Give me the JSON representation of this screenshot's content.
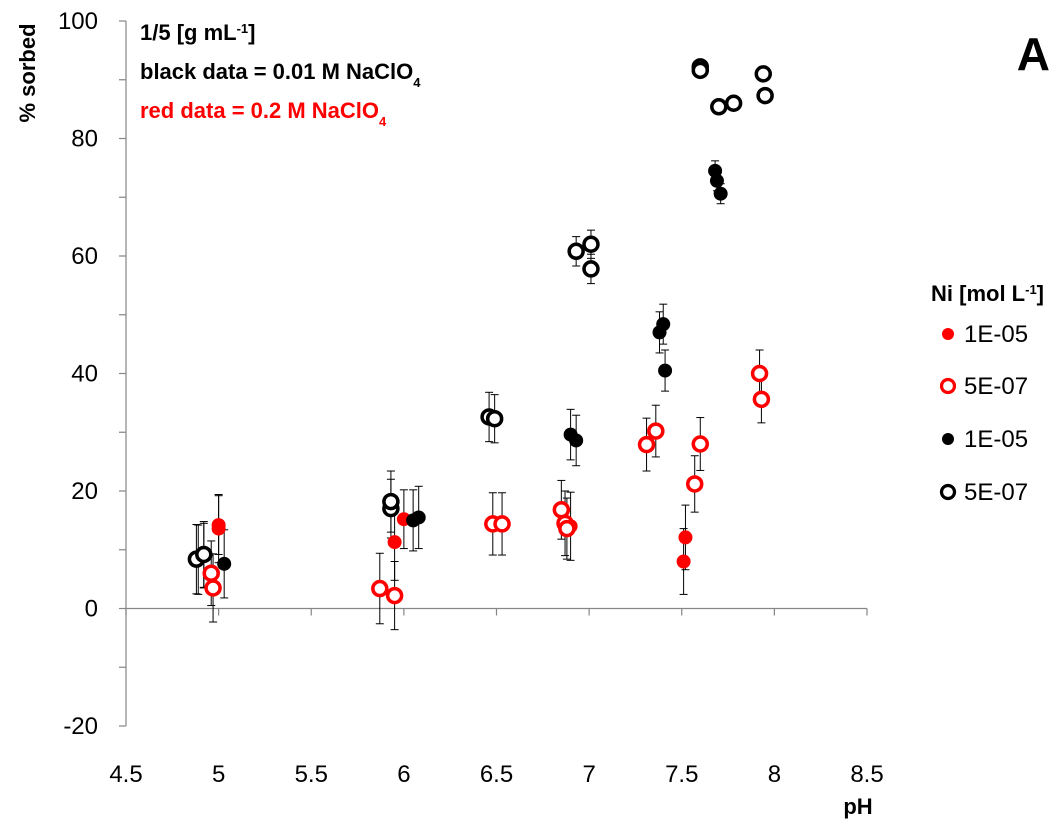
{
  "chart_data": {
    "type": "scatter",
    "title": "",
    "panel_label": "A",
    "xlabel": "pH",
    "ylabel": "% sorbed",
    "xlim": [
      4.5,
      8.5
    ],
    "ylim": [
      -20,
      100
    ],
    "x_ticks": [
      "4.5",
      "5",
      "5.5",
      "6",
      "6.5",
      "7",
      "7.5",
      "8",
      "8.5"
    ],
    "y_ticks": [
      "-20",
      "0",
      "20",
      "40",
      "60",
      "80",
      "100"
    ],
    "x_tick_values": [
      4.5,
      5,
      5.5,
      6,
      6.5,
      7,
      7.5,
      8,
      8.5
    ],
    "y_tick_values": [
      -20,
      0,
      20,
      40,
      60,
      80,
      100
    ],
    "grid": false,
    "legend_position": "right",
    "annotations": [
      {
        "parts": [
          {
            "t": "1/5 [g mL"
          },
          {
            "t": "-1",
            "sup": true
          },
          {
            "t": "]"
          }
        ],
        "color": "#000000"
      },
      {
        "parts": [
          {
            "t": "black data = 0.01 M NaClO"
          },
          {
            "t": "4",
            "sub": true
          }
        ],
        "color": "#000000"
      },
      {
        "parts": [
          {
            "t": "red data = 0.2 M NaClO"
          },
          {
            "t": "4",
            "sub": true
          }
        ],
        "color": "#ff0000"
      }
    ],
    "legend": {
      "title_parts": [
        {
          "t": "Ni [mol L"
        },
        {
          "t": "-1",
          "sup": true
        },
        {
          "t": "]"
        }
      ],
      "entries": [
        {
          "label": "1E-05",
          "color": "#ff0000",
          "filled": true
        },
        {
          "label": "5E-07",
          "color": "#ff0000",
          "filled": false
        },
        {
          "label": "1E-05",
          "color": "#000000",
          "filled": true
        },
        {
          "label": "5E-07",
          "color": "#000000",
          "filled": false
        }
      ]
    },
    "series": [
      {
        "name": "1E-05",
        "color": "#ff0000",
        "filled": true,
        "points": [
          {
            "x": 5.0,
            "y": 14.2,
            "err": 5.0
          },
          {
            "x": 5.0,
            "y": 13.6,
            "err": 5.8
          },
          {
            "x": 5.95,
            "y": 11.3,
            "err": 6.5
          },
          {
            "x": 6.0,
            "y": 15.2,
            "err": 5.0
          },
          {
            "x": 6.9,
            "y": 14.0,
            "err": 5.8
          },
          {
            "x": 7.52,
            "y": 12.1,
            "err": 5.5
          },
          {
            "x": 7.51,
            "y": 8.0,
            "err": 5.6
          }
        ]
      },
      {
        "name": "5E-07",
        "color": "#ff0000",
        "filled": false,
        "points": [
          {
            "x": 4.96,
            "y": 6.0,
            "err": 5.5
          },
          {
            "x": 4.97,
            "y": 3.5,
            "err": 5.8
          },
          {
            "x": 5.87,
            "y": 3.4,
            "err": 6.0
          },
          {
            "x": 5.95,
            "y": 2.2,
            "err": 5.8
          },
          {
            "x": 6.48,
            "y": 14.4,
            "err": 5.3
          },
          {
            "x": 6.53,
            "y": 14.4,
            "err": 5.3
          },
          {
            "x": 6.85,
            "y": 16.8,
            "err": 5.0
          },
          {
            "x": 6.87,
            "y": 14.5,
            "err": 5.5
          },
          {
            "x": 6.88,
            "y": 13.6,
            "err": 5.2
          },
          {
            "x": 7.31,
            "y": 27.9,
            "err": 4.5
          },
          {
            "x": 7.36,
            "y": 30.2,
            "err": 4.4
          },
          {
            "x": 7.57,
            "y": 21.2,
            "err": 4.8
          },
          {
            "x": 7.6,
            "y": 28.0,
            "err": 4.5
          },
          {
            "x": 7.92,
            "y": 40.0,
            "err": 4.0
          },
          {
            "x": 7.93,
            "y": 35.6,
            "err": 4.0
          }
        ]
      },
      {
        "name": "1E-05",
        "color": "#000000",
        "filled": true,
        "points": [
          {
            "x": 4.89,
            "y": 8.3,
            "err": 5.9
          },
          {
            "x": 4.92,
            "y": 9.0,
            "err": 5.5
          },
          {
            "x": 5.03,
            "y": 7.6,
            "err": 5.8
          },
          {
            "x": 6.05,
            "y": 15.0,
            "err": 5.2
          },
          {
            "x": 6.08,
            "y": 15.5,
            "err": 5.3
          },
          {
            "x": 6.9,
            "y": 29.6,
            "err": 4.3
          },
          {
            "x": 6.93,
            "y": 28.6,
            "err": 4.3
          },
          {
            "x": 7.38,
            "y": 47.0,
            "err": 3.5
          },
          {
            "x": 7.4,
            "y": 48.4,
            "err": 3.4
          },
          {
            "x": 7.41,
            "y": 40.5,
            "err": 3.5
          },
          {
            "x": 7.68,
            "y": 74.5,
            "err": 1.7
          },
          {
            "x": 7.69,
            "y": 72.8,
            "err": 1.7
          },
          {
            "x": 7.71,
            "y": 70.6,
            "err": 1.7
          }
        ]
      },
      {
        "name": "5E-07",
        "color": "#000000",
        "filled": false,
        "points": [
          {
            "x": 4.88,
            "y": 8.4,
            "err": 5.9
          },
          {
            "x": 4.92,
            "y": 9.2,
            "err": 5.6
          },
          {
            "x": 5.93,
            "y": 17.0,
            "err": 5.0
          },
          {
            "x": 5.93,
            "y": 18.2,
            "err": 5.2
          },
          {
            "x": 6.46,
            "y": 32.6,
            "err": 4.2
          },
          {
            "x": 6.49,
            "y": 32.3,
            "err": 4.1
          },
          {
            "x": 6.93,
            "y": 60.8,
            "err": 2.5
          },
          {
            "x": 7.01,
            "y": 62.0,
            "err": 2.4
          },
          {
            "x": 7.01,
            "y": 57.8,
            "err": 2.5
          },
          {
            "x": 7.6,
            "y": 92.2,
            "err": 0.8
          },
          {
            "x": 7.6,
            "y": 91.6,
            "err": 0.8
          },
          {
            "x": 7.7,
            "y": 85.4,
            "err": 0.8
          },
          {
            "x": 7.78,
            "y": 86.0,
            "err": 0.8
          },
          {
            "x": 7.94,
            "y": 91.0,
            "err": 0.8
          },
          {
            "x": 7.95,
            "y": 87.3,
            "err": 0.8
          }
        ]
      }
    ]
  }
}
